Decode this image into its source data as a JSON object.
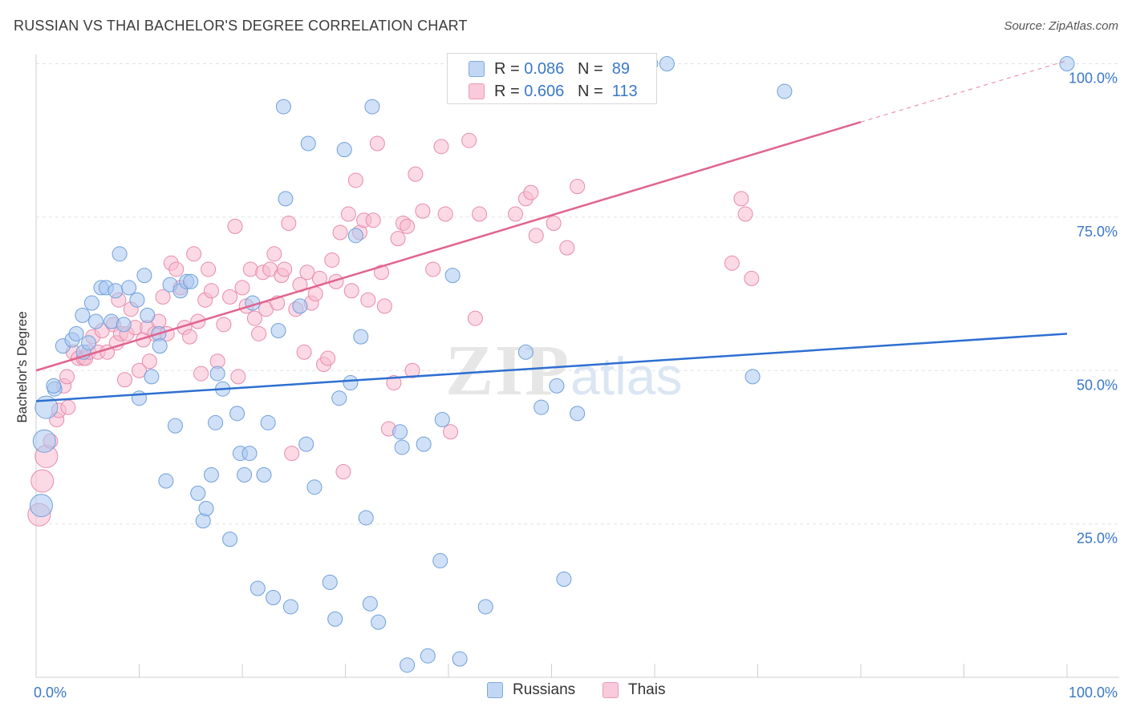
{
  "title": "RUSSIAN VS THAI BACHELOR'S DEGREE CORRELATION CHART",
  "source": "Source: ZipAtlas.com",
  "watermark": "ZIPatlas",
  "legend": {
    "rows": [
      {
        "r_label": "R = ",
        "r_value": "0.086",
        "n_label": "N = ",
        "n_value": "89"
      },
      {
        "r_label": "R = ",
        "r_value": "0.606",
        "n_label": "N = ",
        "n_value": "113"
      }
    ]
  },
  "bottom_legend": [
    "Russians",
    "Thais"
  ],
  "colors": {
    "russians_fill": "#a9c8f0",
    "russians_stroke": "#6f9fdc",
    "russians_line": "#2e6fd1",
    "thais_fill": "#f7bcd0",
    "thais_stroke": "#e88aac",
    "thais_line": "#e0648f",
    "tick_label": "#3a78c9"
  },
  "chart_data": {
    "type": "scatter",
    "title": "RUSSIAN VS THAI BACHELOR'S DEGREE CORRELATION CHART",
    "xlabel": "",
    "ylabel": "Bachelor's Degree",
    "xlim": [
      0,
      100
    ],
    "ylim": [
      0,
      101
    ],
    "x_tick_labels": [
      "0.0%",
      "100.0%"
    ],
    "y_ticks": [
      25,
      50,
      75,
      100
    ],
    "y_tick_labels": [
      "25.0%",
      "50.0%",
      "75.0%",
      "100.0%"
    ],
    "grid": true,
    "legend_position": "top-center",
    "series": [
      {
        "name": "Russians",
        "r": 0.086,
        "n": 89,
        "trend": {
          "x0": 0,
          "y0": 45,
          "x1": 100,
          "y1": 56
        },
        "points": [
          [
            0.5,
            28
          ],
          [
            0.8,
            38.5
          ],
          [
            1,
            44
          ],
          [
            1.8,
            47
          ],
          [
            1.7,
            47.5
          ],
          [
            2.6,
            54
          ],
          [
            3.5,
            55
          ],
          [
            3.9,
            56
          ],
          [
            4.5,
            59
          ],
          [
            4.6,
            53
          ],
          [
            5.1,
            54.5
          ],
          [
            5.4,
            61
          ],
          [
            5.8,
            58
          ],
          [
            6.3,
            63.5
          ],
          [
            6.8,
            63.5
          ],
          [
            7.3,
            58
          ],
          [
            7.7,
            63
          ],
          [
            8.1,
            69
          ],
          [
            8.5,
            57.5
          ],
          [
            9,
            63.5
          ],
          [
            9.8,
            61.5
          ],
          [
            10,
            45.5
          ],
          [
            10.5,
            65.5
          ],
          [
            10.8,
            59
          ],
          [
            11.2,
            49
          ],
          [
            11.9,
            56
          ],
          [
            12,
            54
          ],
          [
            12.6,
            32
          ],
          [
            13,
            64
          ],
          [
            13.5,
            41
          ],
          [
            14,
            63
          ],
          [
            14.6,
            64.5
          ],
          [
            15,
            64.5
          ],
          [
            15.7,
            30
          ],
          [
            16.2,
            25.5
          ],
          [
            16.5,
            27.5
          ],
          [
            17,
            33
          ],
          [
            17.4,
            41.5
          ],
          [
            17.6,
            49.5
          ],
          [
            18.1,
            47
          ],
          [
            18.8,
            22.5
          ],
          [
            19.5,
            43
          ],
          [
            19.8,
            36.5
          ],
          [
            20.2,
            33
          ],
          [
            20.7,
            36.5
          ],
          [
            21,
            61
          ],
          [
            21.5,
            14.5
          ],
          [
            22.1,
            33
          ],
          [
            22.5,
            41.5
          ],
          [
            23,
            13
          ],
          [
            23.5,
            56.5
          ],
          [
            24,
            93
          ],
          [
            24.2,
            78
          ],
          [
            24.7,
            11.5
          ],
          [
            25.6,
            60.5
          ],
          [
            26.2,
            38
          ],
          [
            26.4,
            87
          ],
          [
            27,
            31
          ],
          [
            28.5,
            15.5
          ],
          [
            29,
            9.5
          ],
          [
            29.4,
            45.5
          ],
          [
            29.9,
            86
          ],
          [
            30.5,
            48
          ],
          [
            31,
            72
          ],
          [
            31.5,
            55.5
          ],
          [
            32,
            26
          ],
          [
            32.4,
            12
          ],
          [
            32.6,
            93
          ],
          [
            33.2,
            9
          ],
          [
            35.3,
            40
          ],
          [
            35.5,
            37.5
          ],
          [
            36,
            2
          ],
          [
            37.6,
            38
          ],
          [
            38,
            3.5
          ],
          [
            39.2,
            19
          ],
          [
            39.4,
            42
          ],
          [
            40.4,
            65.5
          ],
          [
            41.1,
            3
          ],
          [
            43.6,
            11.5
          ],
          [
            47.5,
            53
          ],
          [
            49,
            44
          ],
          [
            50.5,
            47.5
          ],
          [
            51.2,
            16
          ],
          [
            52.5,
            43
          ],
          [
            59.6,
            100
          ],
          [
            61.2,
            100
          ],
          [
            69.5,
            49
          ],
          [
            72.6,
            95.5
          ],
          [
            100,
            100
          ]
        ]
      },
      {
        "name": "Thais",
        "r": 0.606,
        "n": 113,
        "trend": {
          "x0": 0,
          "y0": 50,
          "x1": 80,
          "y1": 90.5,
          "x_dashed_end": 100,
          "y_dashed_end": 100.5
        },
        "points": [
          [
            0.3,
            26.5
          ],
          [
            0.6,
            32
          ],
          [
            1,
            36
          ],
          [
            1.4,
            38.5
          ],
          [
            2,
            42
          ],
          [
            2.2,
            43.5
          ],
          [
            2.7,
            47.5
          ],
          [
            3,
            49
          ],
          [
            3.1,
            44
          ],
          [
            3.6,
            53
          ],
          [
            4.1,
            52
          ],
          [
            4.6,
            52
          ],
          [
            4.8,
            52
          ],
          [
            5.1,
            53
          ],
          [
            5.5,
            55.5
          ],
          [
            6,
            53
          ],
          [
            6.4,
            56.5
          ],
          [
            6.9,
            53
          ],
          [
            7.5,
            57.5
          ],
          [
            7.8,
            54.5
          ],
          [
            8,
            61.5
          ],
          [
            8.2,
            56
          ],
          [
            8.6,
            48.5
          ],
          [
            8.8,
            56
          ],
          [
            9.2,
            60
          ],
          [
            9.6,
            57
          ],
          [
            10,
            50
          ],
          [
            10.4,
            55
          ],
          [
            10.8,
            57
          ],
          [
            11,
            51.5
          ],
          [
            11.5,
            56
          ],
          [
            11.9,
            58
          ],
          [
            12.3,
            62
          ],
          [
            12.7,
            56
          ],
          [
            13.1,
            67.5
          ],
          [
            13.6,
            66.5
          ],
          [
            14,
            63.5
          ],
          [
            14.4,
            57
          ],
          [
            14.9,
            55.5
          ],
          [
            15.3,
            69
          ],
          [
            15.7,
            58
          ],
          [
            16,
            49.5
          ],
          [
            16.4,
            61.5
          ],
          [
            16.7,
            66.5
          ],
          [
            17,
            63
          ],
          [
            17.6,
            51.5
          ],
          [
            18.2,
            57.5
          ],
          [
            18.8,
            62
          ],
          [
            19.3,
            73.5
          ],
          [
            19.6,
            49
          ],
          [
            20,
            63.5
          ],
          [
            20.4,
            60.5
          ],
          [
            20.8,
            66.5
          ],
          [
            21.2,
            58.5
          ],
          [
            21.6,
            56
          ],
          [
            22,
            66
          ],
          [
            22.3,
            60
          ],
          [
            22.7,
            66.5
          ],
          [
            23.1,
            69
          ],
          [
            23.4,
            61
          ],
          [
            23.8,
            65.5
          ],
          [
            24.1,
            66.5
          ],
          [
            24.5,
            74
          ],
          [
            24.8,
            36.5
          ],
          [
            25.2,
            60
          ],
          [
            25.6,
            64
          ],
          [
            26,
            53
          ],
          [
            26.3,
            66
          ],
          [
            26.7,
            61
          ],
          [
            27.1,
            62.5
          ],
          [
            27.5,
            65
          ],
          [
            27.9,
            51
          ],
          [
            28.3,
            52
          ],
          [
            28.7,
            68
          ],
          [
            29.1,
            64.5
          ],
          [
            29.5,
            72.5
          ],
          [
            29.8,
            33.5
          ],
          [
            30.3,
            75.5
          ],
          [
            30.6,
            63
          ],
          [
            31,
            81
          ],
          [
            31.4,
            72.5
          ],
          [
            31.8,
            74.5
          ],
          [
            32.2,
            61.5
          ],
          [
            32.7,
            74.5
          ],
          [
            33.1,
            87
          ],
          [
            33.5,
            66
          ],
          [
            33.8,
            60.5
          ],
          [
            34.2,
            40.5
          ],
          [
            34.7,
            48
          ],
          [
            35.1,
            71.5
          ],
          [
            35.6,
            74
          ],
          [
            36,
            73.5
          ],
          [
            36.5,
            50
          ],
          [
            36.8,
            82
          ],
          [
            37.5,
            76
          ],
          [
            38.5,
            66.5
          ],
          [
            39.3,
            86.5
          ],
          [
            39.7,
            75.5
          ],
          [
            40.2,
            40
          ],
          [
            42,
            87.5
          ],
          [
            42.6,
            58.5
          ],
          [
            43,
            75.5
          ],
          [
            46.5,
            75.5
          ],
          [
            47.5,
            78
          ],
          [
            48,
            79
          ],
          [
            48.5,
            72
          ],
          [
            50.2,
            74
          ],
          [
            51.5,
            70
          ],
          [
            52.5,
            80
          ],
          [
            67.5,
            67.5
          ],
          [
            68.4,
            78
          ],
          [
            68.8,
            75.5
          ],
          [
            69.4,
            65
          ]
        ]
      }
    ]
  }
}
